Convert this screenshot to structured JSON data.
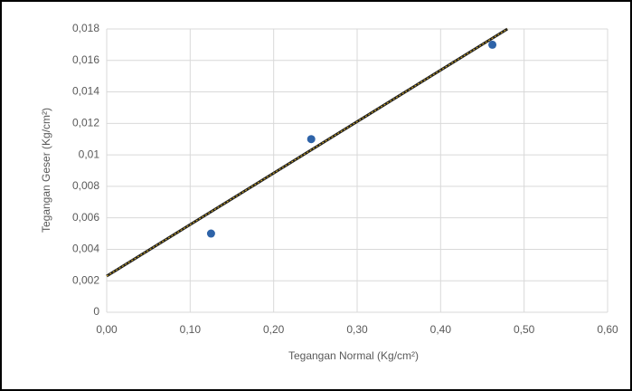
{
  "chart_data": {
    "type": "scatter",
    "x_label": "Tegangan Normal (Kg/cm²)",
    "y_label": "Tegangan Geser (Kg/cm²)",
    "series": [
      {
        "color": "#2e63a8",
        "x": [
          0.125,
          0.245,
          0.462
        ],
        "values": [
          0.005,
          0.011,
          0.017
        ]
      }
    ],
    "trendline": {
      "color": "#1f1f1f",
      "dash_color": "#c9a227",
      "x": [
        0,
        0.48
      ],
      "values": [
        0.0023,
        0.018
      ]
    },
    "xlim": [
      0,
      0.6
    ],
    "ylim": [
      0,
      0.018
    ],
    "xticks": [
      {
        "value": 0,
        "label": "0,00"
      },
      {
        "value": 0.1,
        "label": "0,10"
      },
      {
        "value": 0.2,
        "label": "0,20"
      },
      {
        "value": 0.3,
        "label": "0,30"
      },
      {
        "value": 0.4,
        "label": "0,40"
      },
      {
        "value": 0.5,
        "label": "0,50"
      },
      {
        "value": 0.6,
        "label": "0,60"
      }
    ],
    "yticks": [
      0,
      {
        "value": 0.002,
        "label": "0,002"
      },
      {
        "value": 0.004,
        "label": "0,004"
      },
      {
        "value": 0.006,
        "label": "0,006"
      },
      {
        "value": 0.008,
        "label": "0,008"
      },
      {
        "value": 0.01,
        "label": "0,01"
      },
      {
        "value": 0.012,
        "label": "0,012"
      },
      {
        "value": 0.014,
        "label": "0,014"
      },
      {
        "value": 0.016,
        "label": "0,016"
      },
      {
        "value": 0.018,
        "label": "0,018"
      }
    ],
    "grid": true
  }
}
